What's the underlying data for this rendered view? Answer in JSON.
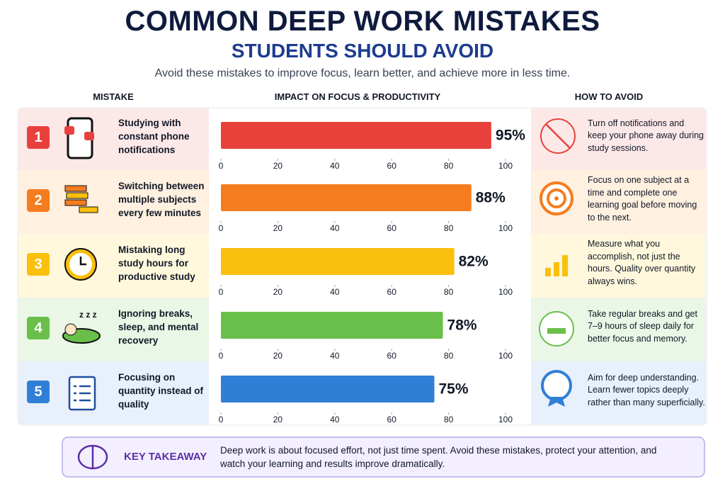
{
  "header": {
    "title": "COMMON DEEP WORK MISTAKES",
    "subtitle": "STUDENTS SHOULD AVOID",
    "tagline": "Avoid these mistakes to improve focus, learn better, and achieve more in less time."
  },
  "columns": [
    "MISTAKE",
    "IMPACT ON FOCUS & PRODUCTIVITY",
    "HOW TO AVOID"
  ],
  "rows": [
    {
      "number": "1",
      "mistake": "Studying with constant phone notifications",
      "avoid": "Turn off notifications and keep your phone away during study sessions."
    },
    {
      "number": "2",
      "mistake": "Switching between multiple subjects every few minutes",
      "avoid": "Focus on one subject at a time and complete one learning goal before moving to the next."
    },
    {
      "number": "3",
      "mistake": "Mistaking long study hours for productive study",
      "avoid": "Measure what you accomplish, not just the hours. Quality over quantity always wins."
    },
    {
      "number": "4",
      "mistake": "Ignoring breaks, sleep, and mental recovery",
      "avoid": "Take regular breaks and get 7–9 hours of sleep daily for better focus and memory."
    },
    {
      "number": "5",
      "mistake": "Focusing on quantity instead of quality",
      "avoid": "Aim for deep understanding. Learn fewer topics deeply rather than many superficially."
    }
  ],
  "chart_data": [
    {
      "type": "hbar",
      "values": [
        95
      ],
      "value_labels": [
        "95%"
      ],
      "color": "#e8413c",
      "xlim": [
        0,
        100
      ],
      "xticks": [
        0,
        20,
        40,
        60,
        80,
        100
      ]
    },
    {
      "type": "hbar",
      "values": [
        88
      ],
      "value_labels": [
        "88%"
      ],
      "color": "#f57c1f",
      "xlim": [
        0,
        100
      ],
      "xticks": [
        0,
        20,
        40,
        60,
        80,
        100
      ]
    },
    {
      "type": "hbar",
      "values": [
        82
      ],
      "value_labels": [
        "82%"
      ],
      "color": "#fbbf0e",
      "xlim": [
        0,
        100
      ],
      "xticks": [
        0,
        20,
        40,
        60,
        80,
        100
      ]
    },
    {
      "type": "hbar",
      "values": [
        78
      ],
      "value_labels": [
        "78%"
      ],
      "color": "#6abf4b",
      "xlim": [
        0,
        100
      ],
      "xticks": [
        0,
        20,
        40,
        60,
        80,
        100
      ]
    },
    {
      "type": "hbar",
      "values": [
        75
      ],
      "value_labels": [
        "75%"
      ],
      "color": "#2f7fd6",
      "xlim": [
        0,
        100
      ],
      "xticks": [
        0,
        20,
        40,
        60,
        80,
        100
      ]
    }
  ],
  "takeaway": {
    "label": "KEY TAKEAWAY",
    "text": "Deep work is about focused effort, not just time spent. Avoid these mistakes, protect your attention, and watch your learning and results improve dramatically."
  }
}
